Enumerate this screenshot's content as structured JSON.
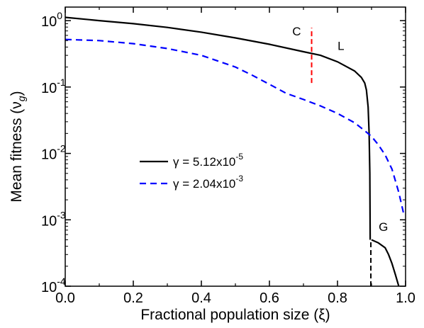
{
  "chart_data": {
    "type": "line",
    "xlabel": "Fractional population size (ξ)",
    "ylabel": "Mean fitness (ν",
    "ylabel_sub": "g",
    "ylabel_close": ")",
    "x_scale": "linear",
    "y_scale": "log",
    "xlim": [
      0.0,
      1.0
    ],
    "ylim": [
      0.0001,
      1.6
    ],
    "x_ticks": [
      {
        "value": 0.0,
        "label": "0.0"
      },
      {
        "value": 0.2,
        "label": "0.2"
      },
      {
        "value": 0.4,
        "label": "0.4"
      },
      {
        "value": 0.6,
        "label": "0.6"
      },
      {
        "value": 0.8,
        "label": "0.8"
      },
      {
        "value": 1.0,
        "label": "1.0"
      }
    ],
    "y_ticks": [
      {
        "value": 0.0001,
        "base": "10",
        "exp": "-4"
      },
      {
        "value": 0.001,
        "base": "10",
        "exp": "-3"
      },
      {
        "value": 0.01,
        "base": "10",
        "exp": "-2"
      },
      {
        "value": 0.1,
        "base": "10",
        "exp": "-1"
      },
      {
        "value": 1,
        "base": "10",
        "exp": "0"
      }
    ],
    "grid": false,
    "legend_position": "center-left",
    "series": [
      {
        "name": "γ = 5.12x10",
        "name_exp": "-5",
        "color": "#000000",
        "style": "solid",
        "points": [
          [
            0.0,
            1.12
          ],
          [
            0.1,
            1.0
          ],
          [
            0.2,
            0.9
          ],
          [
            0.3,
            0.79
          ],
          [
            0.4,
            0.67
          ],
          [
            0.5,
            0.55
          ],
          [
            0.6,
            0.44
          ],
          [
            0.7,
            0.34
          ],
          [
            0.75,
            0.3
          ],
          [
            0.8,
            0.24
          ],
          [
            0.85,
            0.175
          ],
          [
            0.87,
            0.14
          ],
          [
            0.88,
            0.115
          ],
          [
            0.885,
            0.09
          ],
          [
            0.89,
            0.05
          ],
          [
            0.893,
            0.02
          ],
          [
            0.895,
            0.005
          ],
          [
            0.896,
            0.0005
          ]
        ]
      },
      {
        "name": "",
        "color": "#000000",
        "style": "solid",
        "points": [
          [
            0.9,
            0.0005
          ],
          [
            0.92,
            0.00045
          ],
          [
            0.94,
            0.00038
          ],
          [
            0.95,
            0.0003
          ],
          [
            0.96,
            0.00022
          ],
          [
            0.97,
            0.00015
          ],
          [
            0.98,
            0.0001
          ]
        ]
      },
      {
        "name": "γ = 2.04x10",
        "name_exp": "-3",
        "color": "#0000ff",
        "style": "dashed",
        "points": [
          [
            0.0,
            0.52
          ],
          [
            0.1,
            0.5
          ],
          [
            0.2,
            0.45
          ],
          [
            0.3,
            0.38
          ],
          [
            0.4,
            0.3
          ],
          [
            0.5,
            0.2
          ],
          [
            0.55,
            0.15
          ],
          [
            0.6,
            0.11
          ],
          [
            0.65,
            0.08
          ],
          [
            0.7,
            0.065
          ],
          [
            0.75,
            0.052
          ],
          [
            0.8,
            0.04
          ],
          [
            0.85,
            0.029
          ],
          [
            0.88,
            0.022
          ],
          [
            0.9,
            0.018
          ],
          [
            0.92,
            0.0135
          ],
          [
            0.94,
            0.0095
          ],
          [
            0.96,
            0.0058
          ],
          [
            0.98,
            0.0026
          ],
          [
            0.995,
            0.0012
          ]
        ]
      }
    ],
    "markers": [
      {
        "x": 0.724,
        "y_from": 0.115,
        "y_to": 0.78,
        "color": "#ff0000",
        "style": "dashed"
      },
      {
        "x": 0.898,
        "y_from": 0.0001,
        "y_to": 0.00048,
        "color": "#000000",
        "style": "dashed"
      }
    ],
    "annotations": [
      {
        "text": "C",
        "x": 0.68,
        "y": 0.6
      },
      {
        "text": "L",
        "x": 0.81,
        "y": 0.36
      },
      {
        "text": "G",
        "x": 0.935,
        "y": 0.00068
      }
    ]
  }
}
